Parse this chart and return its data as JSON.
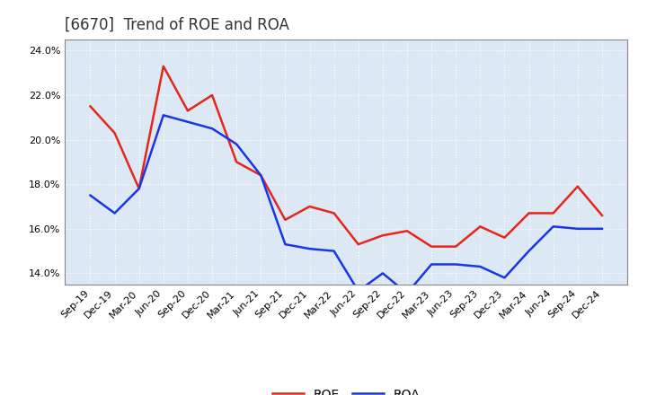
{
  "title": "[6670]  Trend of ROE and ROA",
  "x_labels": [
    "Sep-19",
    "Dec-19",
    "Mar-20",
    "Jun-20",
    "Sep-20",
    "Dec-20",
    "Mar-21",
    "Jun-21",
    "Sep-21",
    "Dec-21",
    "Mar-22",
    "Jun-22",
    "Sep-22",
    "Dec-22",
    "Mar-23",
    "Jun-23",
    "Sep-23",
    "Dec-23",
    "Mar-24",
    "Jun-24",
    "Sep-24",
    "Dec-24"
  ],
  "roe": [
    21.5,
    20.3,
    17.8,
    23.3,
    21.3,
    22.0,
    19.0,
    18.4,
    16.4,
    17.0,
    16.7,
    15.3,
    15.7,
    15.9,
    15.2,
    15.2,
    16.1,
    15.6,
    16.7,
    16.7,
    17.9,
    16.6
  ],
  "roa": [
    17.5,
    16.7,
    17.8,
    21.1,
    20.8,
    20.5,
    19.8,
    18.4,
    15.3,
    15.1,
    15.0,
    13.2,
    14.0,
    13.1,
    14.4,
    14.4,
    14.3,
    13.8,
    15.0,
    16.1,
    16.0,
    16.0
  ],
  "roe_color": "#e8251a",
  "roa_color": "#1a35e8",
  "ylim": [
    13.5,
    24.5
  ],
  "yticks": [
    14.0,
    16.0,
    18.0,
    20.0,
    22.0,
    24.0
  ],
  "plot_bg_color": "#dce9f5",
  "fig_bg_color": "#ffffff",
  "grid_color": "#ffffff",
  "title_color": "#333333",
  "title_fontsize": 12,
  "tick_fontsize": 8,
  "legend_labels": [
    "ROE",
    "ROA"
  ],
  "line_width": 1.8
}
